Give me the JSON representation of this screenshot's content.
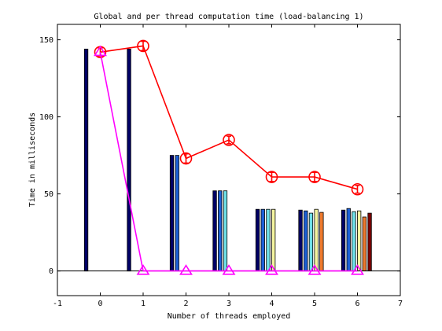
{
  "chart_data": {
    "type": "bar",
    "title": "Global and per thread computation time (load-balancing 1)",
    "xlabel": "Number of threads employed",
    "ylabel": "Time in milliseconds",
    "xlim": [
      -1,
      7
    ],
    "ylim": [
      -16,
      160
    ],
    "xticks": [
      -1,
      0,
      1,
      2,
      3,
      4,
      5,
      6,
      7
    ],
    "yticks": [
      0,
      50,
      100,
      150
    ],
    "grid": false,
    "legend": "none",
    "bar_groups": [
      {
        "threads": 0,
        "values": [
          144
        ]
      },
      {
        "threads": 1,
        "values": [
          144
        ]
      },
      {
        "threads": 2,
        "values": [
          75,
          75
        ]
      },
      {
        "threads": 3,
        "values": [
          52,
          52,
          52
        ]
      },
      {
        "threads": 4,
        "values": [
          40,
          40,
          40,
          40
        ]
      },
      {
        "threads": 5,
        "values": [
          39.5,
          39,
          37.5,
          40,
          38
        ]
      },
      {
        "threads": 6,
        "values": [
          39.5,
          40.5,
          38.5,
          39,
          35,
          37.5
        ]
      }
    ],
    "bar_colors": [
      "#000066",
      "#1c5fd6",
      "#6fe0e8",
      "#f4f4a0",
      "#ee7a2e",
      "#7a0000"
    ],
    "series": [
      {
        "type": "line",
        "color": "#ff0000",
        "marker": "circle-errorbar",
        "x": [
          0,
          1,
          2,
          3,
          4,
          5,
          6
        ],
        "y": [
          142,
          146,
          73,
          85,
          61,
          61,
          53
        ],
        "err": [
          2.5,
          3,
          3,
          2.5,
          3,
          3,
          2.5
        ]
      },
      {
        "type": "line",
        "color": "#ff00ff",
        "marker": "triangle",
        "x": [
          0,
          1,
          2,
          3,
          4,
          5,
          6
        ],
        "y": [
          142,
          0,
          0,
          0,
          0,
          0,
          0
        ]
      }
    ]
  }
}
